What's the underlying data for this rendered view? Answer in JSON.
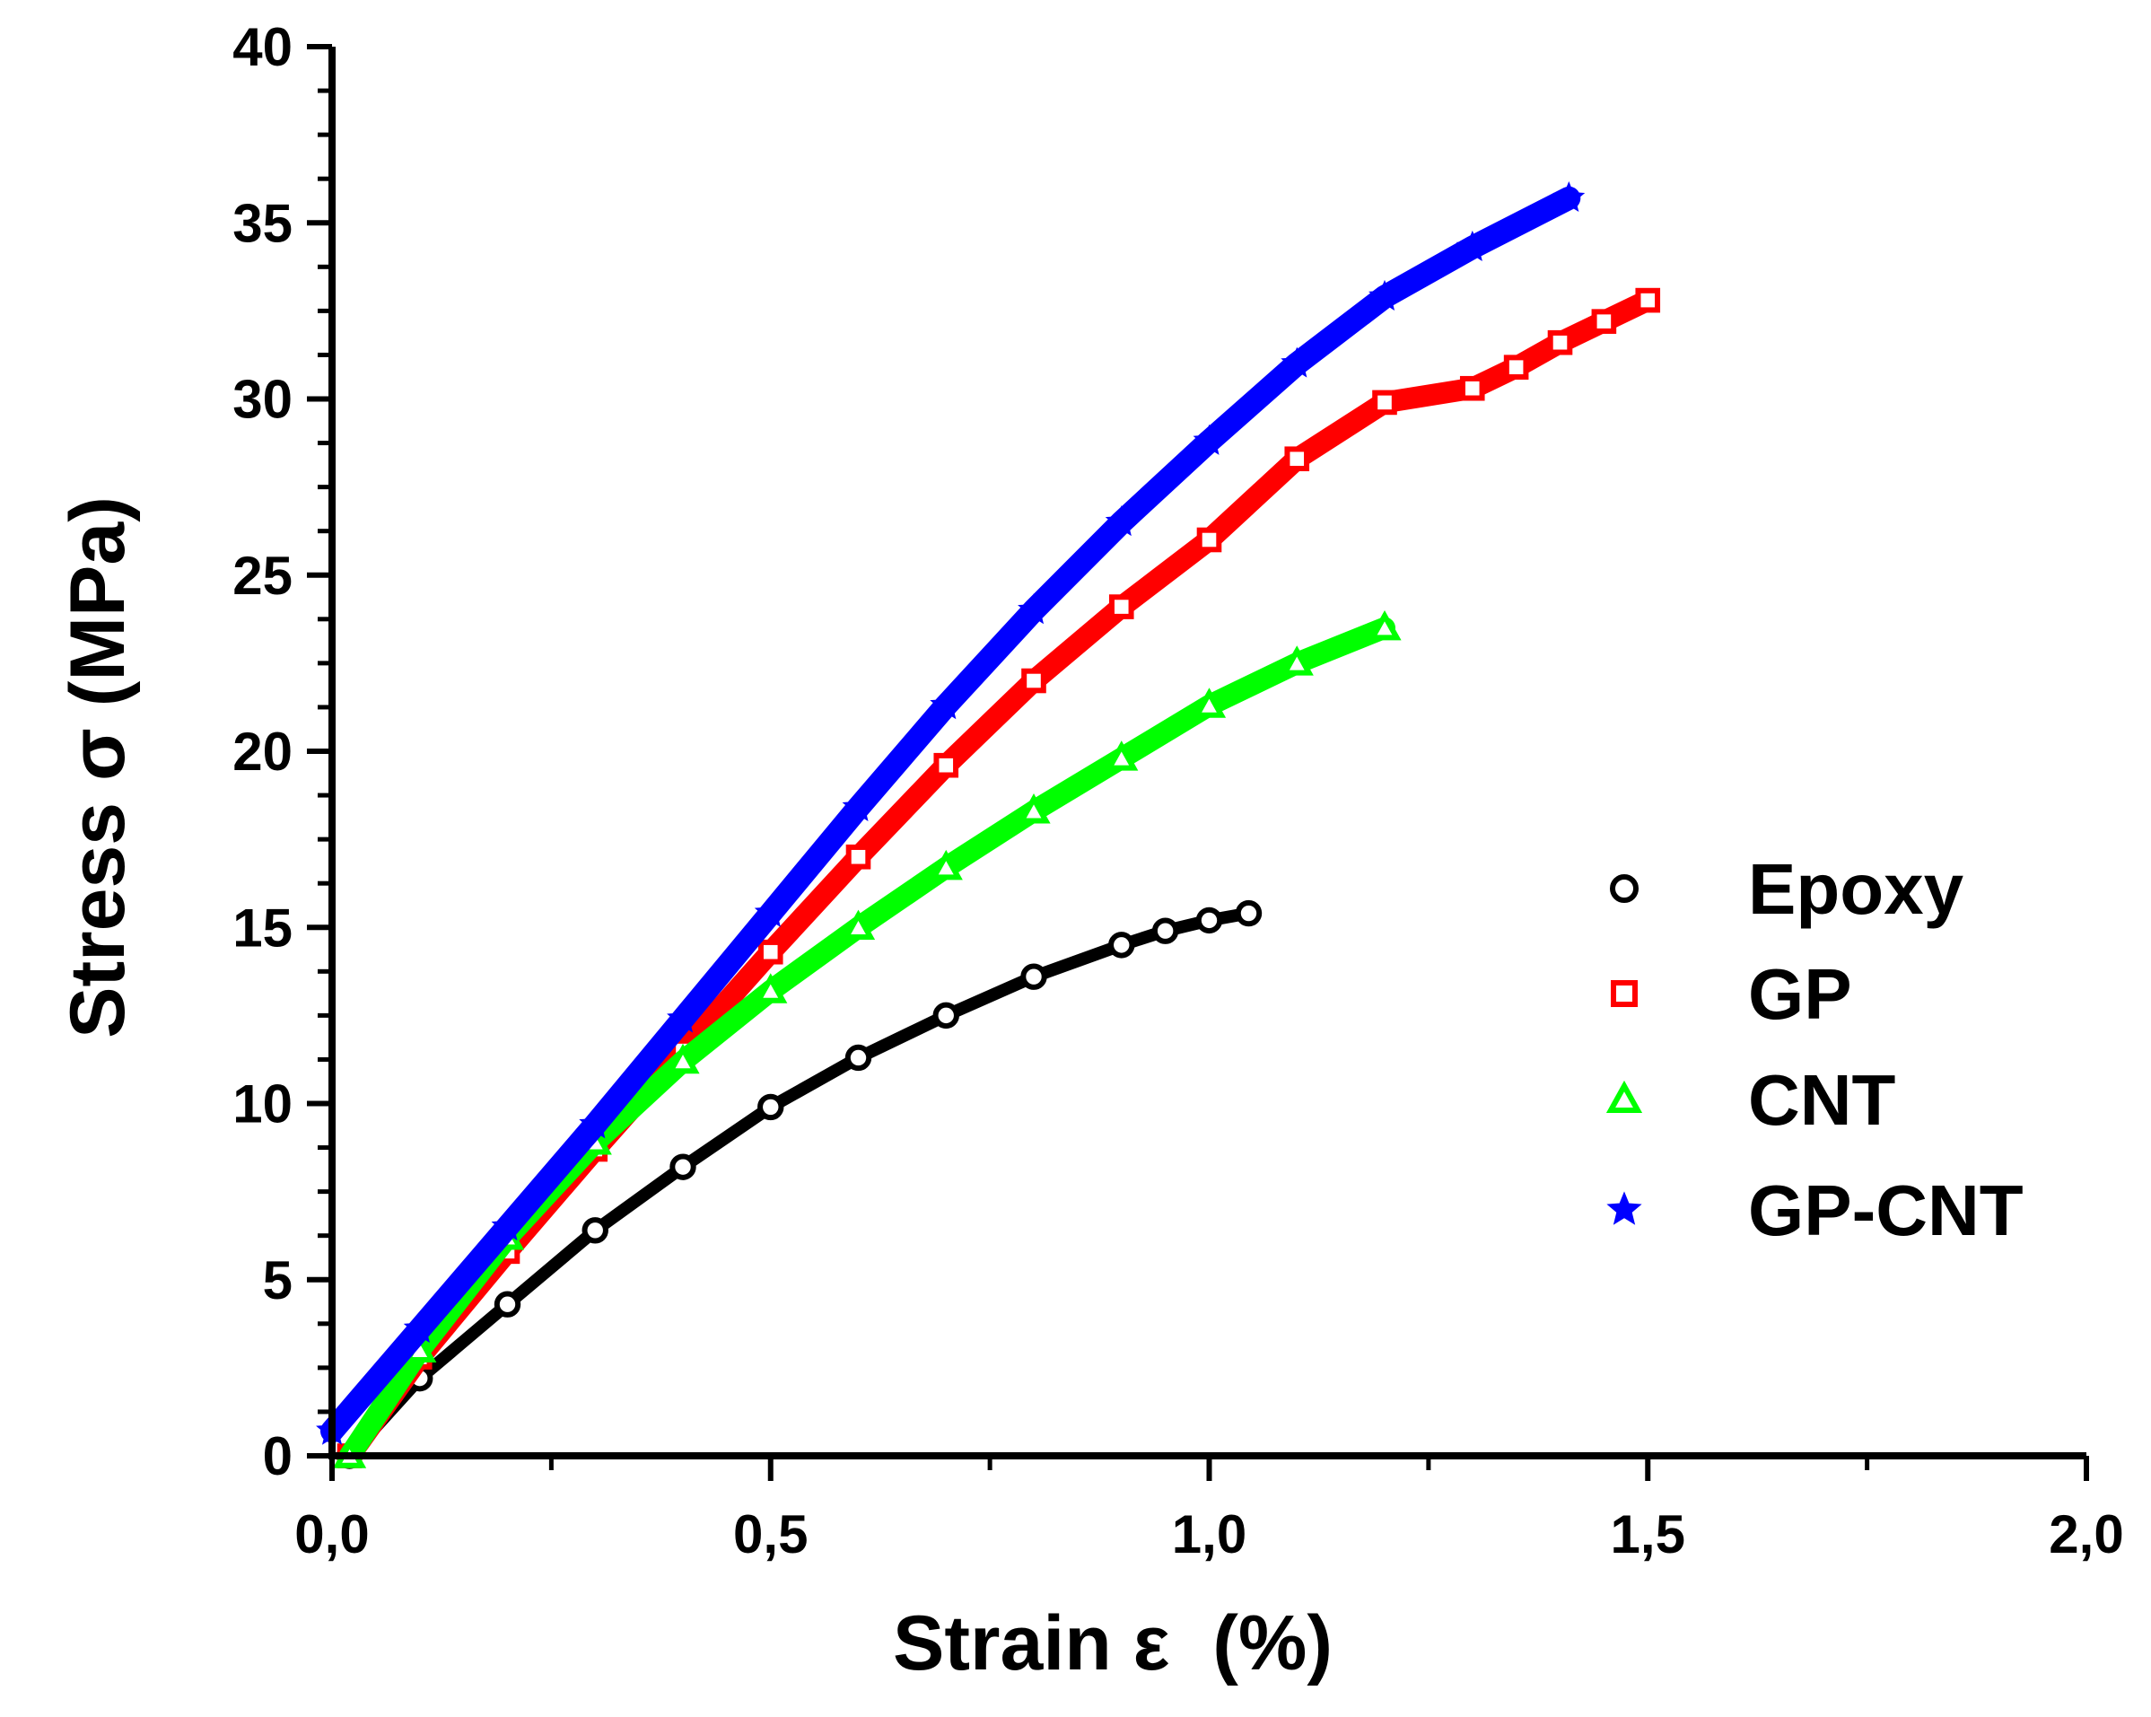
{
  "chart_data": {
    "type": "line",
    "xlabel": "Strain ε  (%)",
    "ylabel": "Stress σ (MPa)",
    "xlim": [
      0,
      2.0
    ],
    "ylim": [
      0,
      40
    ],
    "xticks": [
      "0,0",
      "0,5",
      "1,0",
      "1,5",
      "2,0"
    ],
    "yticks": [
      "0",
      "5",
      "10",
      "15",
      "20",
      "25",
      "30",
      "35",
      "40"
    ],
    "legend_position": "right",
    "series": [
      {
        "name": "Epoxy",
        "color": "#000000",
        "marker": "circle",
        "x": [
          0.02,
          0.1,
          0.2,
          0.3,
          0.4,
          0.5,
          0.6,
          0.7,
          0.8,
          0.9,
          0.95,
          1.0,
          1.045
        ],
        "y": [
          0.0,
          2.2,
          4.3,
          6.4,
          8.2,
          9.9,
          11.3,
          12.5,
          13.6,
          14.5,
          14.9,
          15.2,
          15.4
        ]
      },
      {
        "name": "GP",
        "color": "#ff0000",
        "marker": "square",
        "x": [
          0.02,
          0.1,
          0.2,
          0.3,
          0.4,
          0.5,
          0.6,
          0.7,
          0.8,
          0.9,
          1.0,
          1.1,
          1.2,
          1.3,
          1.35,
          1.4,
          1.45,
          1.5
        ],
        "y": [
          0.0,
          2.8,
          5.8,
          8.7,
          11.5,
          14.3,
          17.0,
          19.6,
          22.0,
          24.1,
          26.0,
          28.3,
          29.9,
          30.3,
          30.9,
          31.6,
          32.2,
          32.8
        ]
      },
      {
        "name": "CNT",
        "color": "#00ff00",
        "marker": "triangle",
        "x": [
          0.02,
          0.1,
          0.2,
          0.3,
          0.4,
          0.5,
          0.6,
          0.7,
          0.8,
          0.9,
          1.0,
          1.1,
          1.2
        ],
        "y": [
          0.0,
          3.0,
          6.2,
          8.9,
          11.2,
          13.2,
          15.0,
          16.7,
          18.3,
          19.8,
          21.3,
          22.5,
          23.5
        ]
      },
      {
        "name": "GP-CNT",
        "color": "#0000ff",
        "marker": "star",
        "x": [
          0.0,
          0.1,
          0.2,
          0.3,
          0.4,
          0.5,
          0.6,
          0.7,
          0.8,
          0.9,
          1.0,
          1.1,
          1.2,
          1.3,
          1.41
        ],
        "y": [
          0.7,
          3.6,
          6.5,
          9.4,
          12.4,
          15.4,
          18.4,
          21.3,
          24.0,
          26.5,
          28.8,
          31.0,
          32.9,
          34.3,
          35.7
        ]
      }
    ]
  }
}
